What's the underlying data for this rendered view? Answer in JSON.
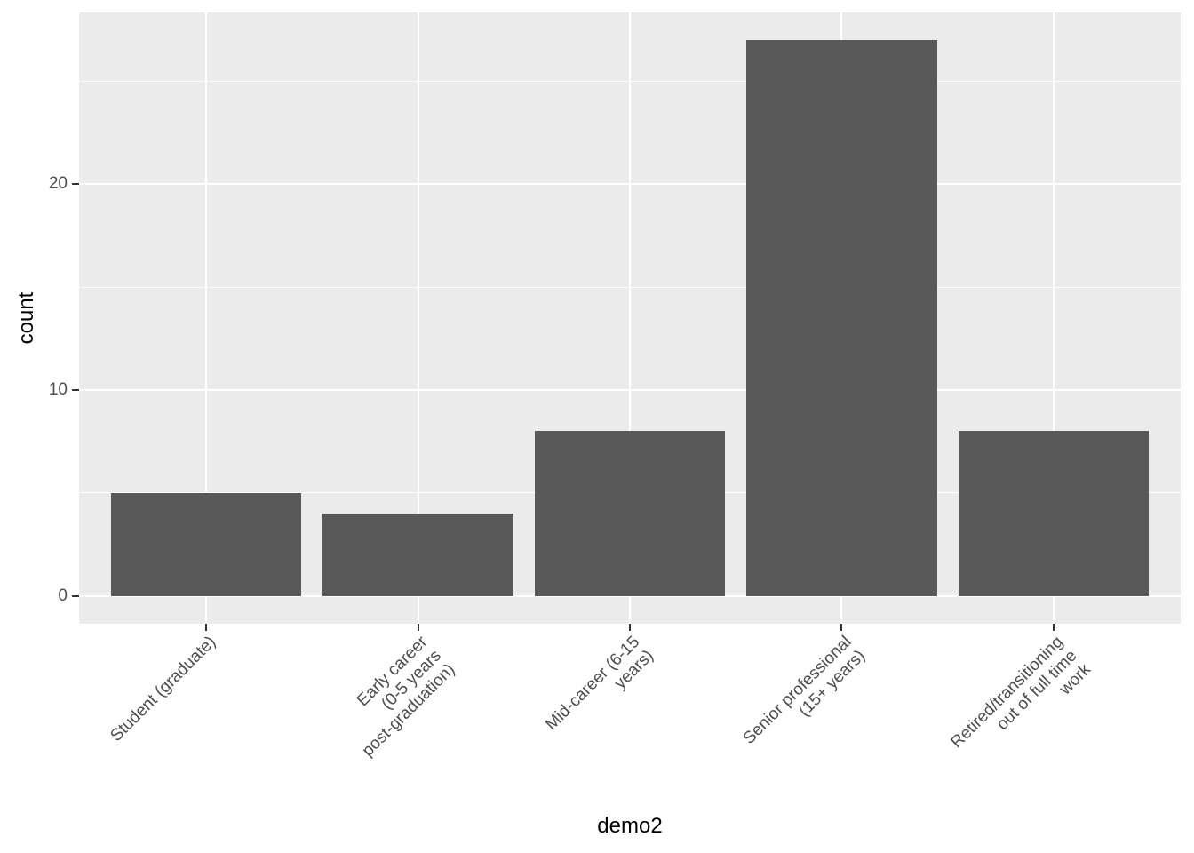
{
  "chart_data": {
    "type": "bar",
    "title": "",
    "xlabel": "demo2",
    "ylabel": "count",
    "categories": [
      "Student (graduate)",
      "Early career\n(0-5 years\npost-graduation)",
      "Mid-career (6-15\nyears)",
      "Senior professional\n(15+ years)",
      "Retired/transitioning\nout of full time\nwork"
    ],
    "values": [
      5,
      4,
      8,
      27,
      8
    ],
    "yticks": [
      0,
      10,
      20
    ],
    "yticks_minor": [
      5,
      15,
      25
    ],
    "ylim": [
      0,
      27
    ],
    "legend": "none",
    "grid": "white major+minor on gray panel",
    "style": {
      "bar_fill": "#595959",
      "panel_bg": "#EBEBEB",
      "grid_color": "#FFFFFF",
      "axis_text_color": "#4D4D4D",
      "tick_color": "#333333",
      "axis_title_color": "#000000",
      "page_bg": "#FFFFFF"
    }
  }
}
